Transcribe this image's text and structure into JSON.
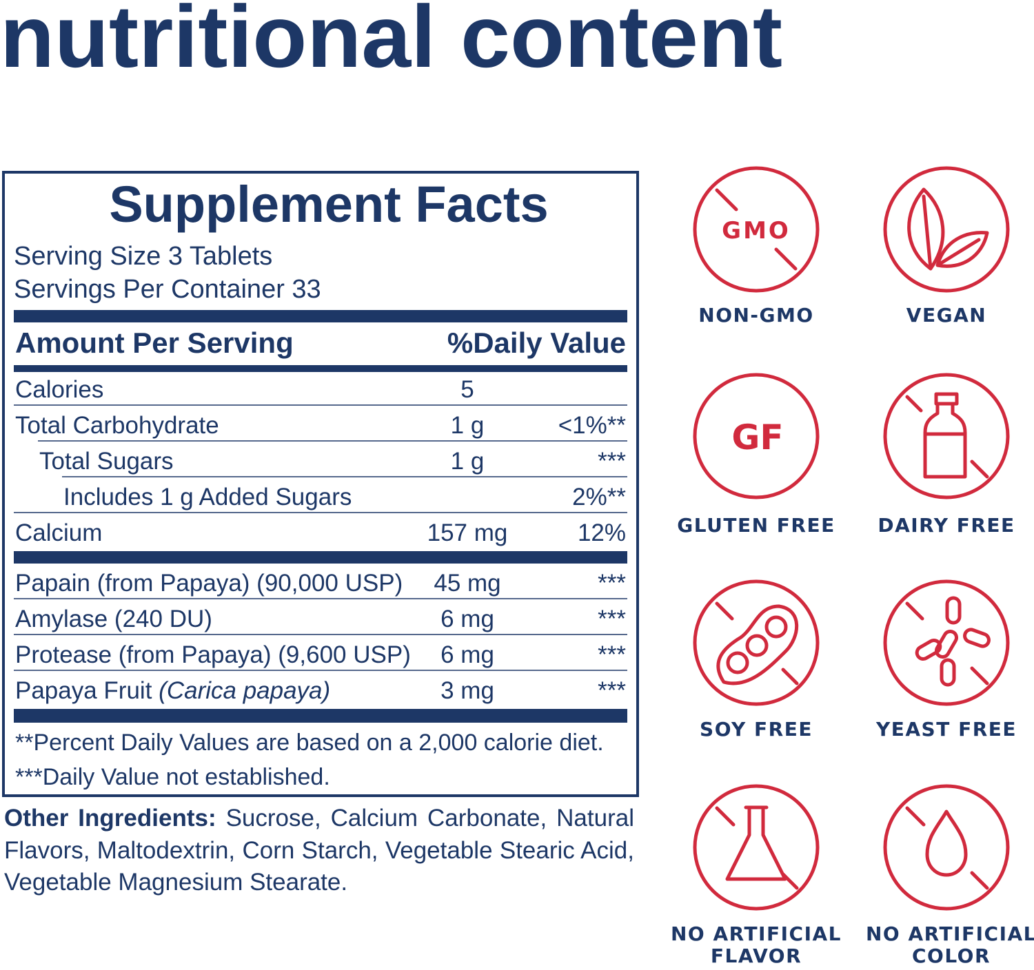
{
  "header": {
    "title": "nutritional content"
  },
  "facts": {
    "title": "Supplement Facts",
    "serving_size": "Serving Size 3 Tablets",
    "servings_per_container": "Servings Per Container 33",
    "columns": [
      "Amount Per Serving",
      "%Daily Value"
    ],
    "sections": [
      [
        {
          "name": "Calories",
          "amount": "5"
        },
        {
          "name": "Total Carbohydrate",
          "amount": "1 g",
          "dv": "<1%**",
          "sub": [
            {
              "name": "Total Sugars",
              "amount": "1 g",
              "dv": "***",
              "sub": [
                {
                  "name": "Includes 1 g Added Sugars",
                  "dv": "2%**"
                }
              ]
            }
          ]
        },
        {
          "name": "Calcium",
          "amount": "157 mg",
          "dv": "12%"
        }
      ],
      [
        {
          "name": "Papain (from Papaya) (90,000 USP)",
          "amount": "45 mg",
          "dv": "***"
        },
        {
          "name": "Amylase (240 DU)",
          "amount": "6 mg",
          "dv": "***"
        },
        {
          "name": "Protease (from Papaya) (9,600 USP)",
          "amount": "6 mg",
          "dv": "***"
        },
        {
          "name": "Papaya Fruit",
          "name_italic": "(Carica papaya)",
          "amount": "3 mg",
          "dv": "***"
        }
      ]
    ],
    "footnotes": [
      "**Percent Daily Values are based on a 2,000 calorie diet.",
      "***Daily Value not established."
    ]
  },
  "other_ingredients": {
    "label": "Other Ingredients:",
    "text": "Sucrose, Calcium Carbonate, Natural Flavors, Maltodextrin, Corn Starch, Vegetable Stearic Acid, Vegetable Magnesium Stearate."
  },
  "badges": [
    {
      "label": [
        "NON-GMO"
      ],
      "icon_text": "GMO"
    },
    {
      "label": [
        "VEGAN"
      ]
    },
    {
      "label": [
        "GLUTEN FREE"
      ],
      "icon_text": "GF"
    },
    {
      "label": [
        "DAIRY FREE"
      ]
    },
    {
      "label": [
        "SOY FREE"
      ]
    },
    {
      "label": [
        "YEAST FREE"
      ]
    },
    {
      "label": [
        "NO ARTIFICIAL",
        "FLAVOR"
      ]
    },
    {
      "label": [
        "NO ARTIFICIAL",
        "COLOR"
      ]
    }
  ]
}
